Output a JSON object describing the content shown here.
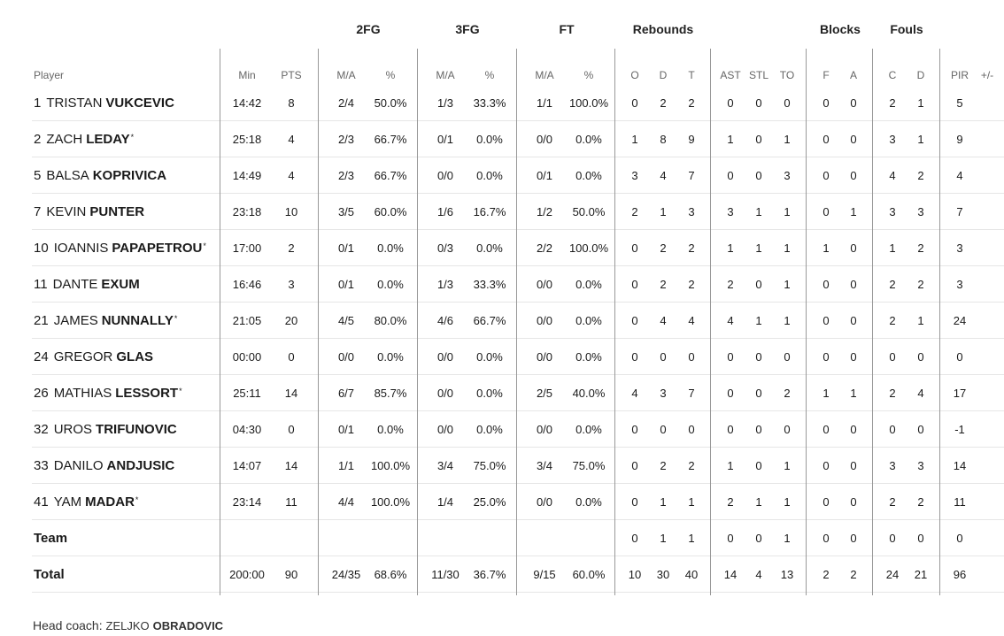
{
  "group_headers": {
    "fg2": "2FG",
    "fg3": "3FG",
    "ft": "FT",
    "rebounds": "Rebounds",
    "blocks": "Blocks",
    "fouls": "Fouls"
  },
  "column_headers": {
    "player": "Player",
    "min": "Min",
    "pts": "PTS",
    "fg2_ma": "M/A",
    "fg2_pct": "%",
    "fg3_ma": "M/A",
    "fg3_pct": "%",
    "ft_ma": "M/A",
    "ft_pct": "%",
    "reb_o": "O",
    "reb_d": "D",
    "reb_t": "T",
    "ast": "AST",
    "stl": "STL",
    "to": "TO",
    "blk_f": "F",
    "blk_a": "A",
    "foul_c": "C",
    "foul_d": "D",
    "pir": "PIR",
    "plus_minus": "+/-"
  },
  "players": [
    {
      "number": "1",
      "first": "TRISTAN",
      "last": "VUKCEVIC",
      "star": "",
      "min": "14:42",
      "pts": "8",
      "fg2": "2/4",
      "fg2p": "50.0%",
      "fg3": "1/3",
      "fg3p": "33.3%",
      "ft": "1/1",
      "ftp": "100.0%",
      "o": "0",
      "d": "2",
      "t": "2",
      "ast": "0",
      "stl": "0",
      "to": "0",
      "bf": "0",
      "ba": "0",
      "fc": "2",
      "fd": "1",
      "pir": "5",
      "pm": ""
    },
    {
      "number": "2",
      "first": "ZACH",
      "last": "LEDAY",
      "star": "*",
      "min": "25:18",
      "pts": "4",
      "fg2": "2/3",
      "fg2p": "66.7%",
      "fg3": "0/1",
      "fg3p": "0.0%",
      "ft": "0/0",
      "ftp": "0.0%",
      "o": "1",
      "d": "8",
      "t": "9",
      "ast": "1",
      "stl": "0",
      "to": "1",
      "bf": "0",
      "ba": "0",
      "fc": "3",
      "fd": "1",
      "pir": "9",
      "pm": ""
    },
    {
      "number": "5",
      "first": "BALSA",
      "last": "KOPRIVICA",
      "star": "",
      "min": "14:49",
      "pts": "4",
      "fg2": "2/3",
      "fg2p": "66.7%",
      "fg3": "0/0",
      "fg3p": "0.0%",
      "ft": "0/1",
      "ftp": "0.0%",
      "o": "3",
      "d": "4",
      "t": "7",
      "ast": "0",
      "stl": "0",
      "to": "3",
      "bf": "0",
      "ba": "0",
      "fc": "4",
      "fd": "2",
      "pir": "4",
      "pm": ""
    },
    {
      "number": "7",
      "first": "KEVIN",
      "last": "PUNTER",
      "star": "",
      "min": "23:18",
      "pts": "10",
      "fg2": "3/5",
      "fg2p": "60.0%",
      "fg3": "1/6",
      "fg3p": "16.7%",
      "ft": "1/2",
      "ftp": "50.0%",
      "o": "2",
      "d": "1",
      "t": "3",
      "ast": "3",
      "stl": "1",
      "to": "1",
      "bf": "0",
      "ba": "1",
      "fc": "3",
      "fd": "3",
      "pir": "7",
      "pm": ""
    },
    {
      "number": "10",
      "first": "IOANNIS",
      "last": "PAPAPETROU",
      "star": "*",
      "min": "17:00",
      "pts": "2",
      "fg2": "0/1",
      "fg2p": "0.0%",
      "fg3": "0/3",
      "fg3p": "0.0%",
      "ft": "2/2",
      "ftp": "100.0%",
      "o": "0",
      "d": "2",
      "t": "2",
      "ast": "1",
      "stl": "1",
      "to": "1",
      "bf": "1",
      "ba": "0",
      "fc": "1",
      "fd": "2",
      "pir": "3",
      "pm": ""
    },
    {
      "number": "11",
      "first": "DANTE",
      "last": "EXUM",
      "star": "",
      "min": "16:46",
      "pts": "3",
      "fg2": "0/1",
      "fg2p": "0.0%",
      "fg3": "1/3",
      "fg3p": "33.3%",
      "ft": "0/0",
      "ftp": "0.0%",
      "o": "0",
      "d": "2",
      "t": "2",
      "ast": "2",
      "stl": "0",
      "to": "1",
      "bf": "0",
      "ba": "0",
      "fc": "2",
      "fd": "2",
      "pir": "3",
      "pm": ""
    },
    {
      "number": "21",
      "first": "JAMES",
      "last": "NUNNALLY",
      "star": "*",
      "min": "21:05",
      "pts": "20",
      "fg2": "4/5",
      "fg2p": "80.0%",
      "fg3": "4/6",
      "fg3p": "66.7%",
      "ft": "0/0",
      "ftp": "0.0%",
      "o": "0",
      "d": "4",
      "t": "4",
      "ast": "4",
      "stl": "1",
      "to": "1",
      "bf": "0",
      "ba": "0",
      "fc": "2",
      "fd": "1",
      "pir": "24",
      "pm": ""
    },
    {
      "number": "24",
      "first": "GREGOR",
      "last": "GLAS",
      "star": "",
      "min": "00:00",
      "pts": "0",
      "fg2": "0/0",
      "fg2p": "0.0%",
      "fg3": "0/0",
      "fg3p": "0.0%",
      "ft": "0/0",
      "ftp": "0.0%",
      "o": "0",
      "d": "0",
      "t": "0",
      "ast": "0",
      "stl": "0",
      "to": "0",
      "bf": "0",
      "ba": "0",
      "fc": "0",
      "fd": "0",
      "pir": "0",
      "pm": ""
    },
    {
      "number": "26",
      "first": "MATHIAS",
      "last": "LESSORT",
      "star": "*",
      "min": "25:11",
      "pts": "14",
      "fg2": "6/7",
      "fg2p": "85.7%",
      "fg3": "0/0",
      "fg3p": "0.0%",
      "ft": "2/5",
      "ftp": "40.0%",
      "o": "4",
      "d": "3",
      "t": "7",
      "ast": "0",
      "stl": "0",
      "to": "2",
      "bf": "1",
      "ba": "1",
      "fc": "2",
      "fd": "4",
      "pir": "17",
      "pm": ""
    },
    {
      "number": "32",
      "first": "UROS",
      "last": "TRIFUNOVIC",
      "star": "",
      "min": "04:30",
      "pts": "0",
      "fg2": "0/1",
      "fg2p": "0.0%",
      "fg3": "0/0",
      "fg3p": "0.0%",
      "ft": "0/0",
      "ftp": "0.0%",
      "o": "0",
      "d": "0",
      "t": "0",
      "ast": "0",
      "stl": "0",
      "to": "0",
      "bf": "0",
      "ba": "0",
      "fc": "0",
      "fd": "0",
      "pir": "-1",
      "pm": ""
    },
    {
      "number": "33",
      "first": "DANILO",
      "last": "ANDJUSIC",
      "star": "",
      "min": "14:07",
      "pts": "14",
      "fg2": "1/1",
      "fg2p": "100.0%",
      "fg3": "3/4",
      "fg3p": "75.0%",
      "ft": "3/4",
      "ftp": "75.0%",
      "o": "0",
      "d": "2",
      "t": "2",
      "ast": "1",
      "stl": "0",
      "to": "1",
      "bf": "0",
      "ba": "0",
      "fc": "3",
      "fd": "3",
      "pir": "14",
      "pm": ""
    },
    {
      "number": "41",
      "first": "YAM",
      "last": "MADAR",
      "star": "*",
      "min": "23:14",
      "pts": "11",
      "fg2": "4/4",
      "fg2p": "100.0%",
      "fg3": "1/4",
      "fg3p": "25.0%",
      "ft": "0/0",
      "ftp": "0.0%",
      "o": "0",
      "d": "1",
      "t": "1",
      "ast": "2",
      "stl": "1",
      "to": "1",
      "bf": "0",
      "ba": "0",
      "fc": "2",
      "fd": "2",
      "pir": "11",
      "pm": ""
    }
  ],
  "team_row": {
    "label": "Team",
    "min": "",
    "pts": "",
    "fg2": "",
    "fg2p": "",
    "fg3": "",
    "fg3p": "",
    "ft": "",
    "ftp": "",
    "o": "0",
    "d": "1",
    "t": "1",
    "ast": "0",
    "stl": "0",
    "to": "1",
    "bf": "0",
    "ba": "0",
    "fc": "0",
    "fd": "0",
    "pir": "0",
    "pm": ""
  },
  "total_row": {
    "label": "Total",
    "min": "200:00",
    "pts": "90",
    "fg2": "24/35",
    "fg2p": "68.6%",
    "fg3": "11/30",
    "fg3p": "36.7%",
    "ft": "9/15",
    "ftp": "60.0%",
    "o": "10",
    "d": "30",
    "t": "40",
    "ast": "14",
    "stl": "4",
    "to": "13",
    "bf": "2",
    "ba": "2",
    "fc": "24",
    "fd": "21",
    "pir": "96",
    "pm": ""
  },
  "coach": {
    "label": "Head coach:",
    "first": "ZELJKO",
    "last": "OBRADOVIC"
  }
}
